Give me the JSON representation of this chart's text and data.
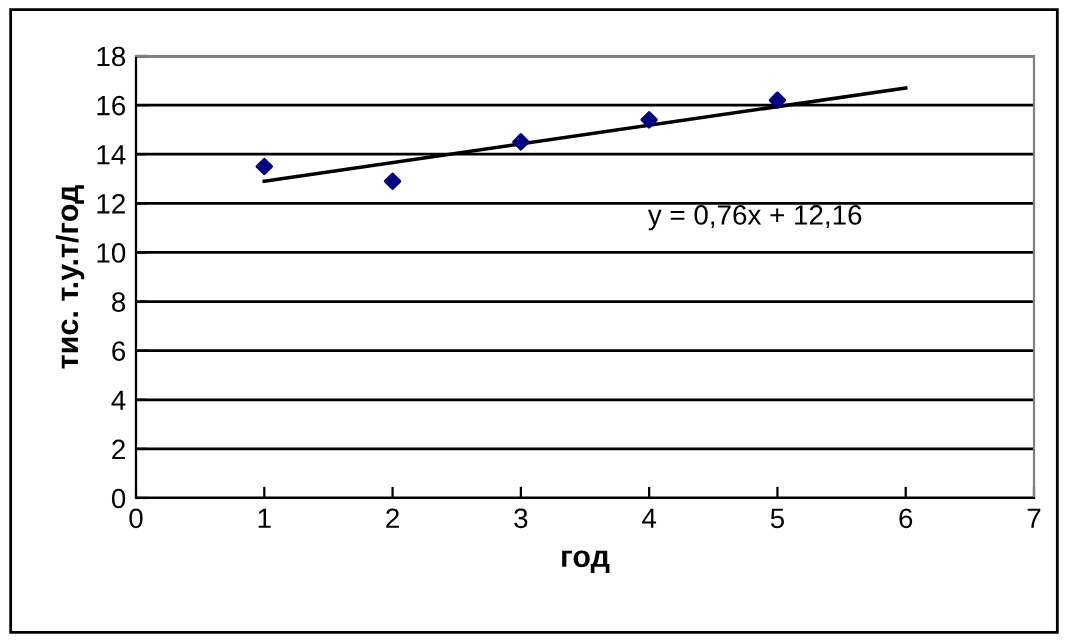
{
  "chart_data": {
    "type": "scatter",
    "xlabel": "год",
    "ylabel": "тис. т.у.т/год",
    "series": [
      {
        "color": "#000080",
        "marker": "diamond",
        "x": [
          1,
          2,
          3,
          4,
          5
        ],
        "values": [
          13.5,
          12.9,
          14.5,
          15.4,
          16.2
        ]
      },
      {
        "type": "line",
        "color": "#000000",
        "marker": "none",
        "line_style": "solid",
        "x": [
          1,
          6
        ],
        "values": [
          12.9,
          16.7
        ]
      }
    ],
    "annotations": [
      "y = 0,76x + 12,16"
    ],
    "xlim": [
      0,
      7
    ],
    "xticks": [
      0,
      1,
      2,
      3,
      4,
      5,
      6,
      7
    ],
    "ylim": [
      0,
      18
    ],
    "yticks": [
      0,
      2,
      4,
      6,
      8,
      10,
      12,
      14,
      16,
      18
    ],
    "grid": "y",
    "legend": false
  }
}
